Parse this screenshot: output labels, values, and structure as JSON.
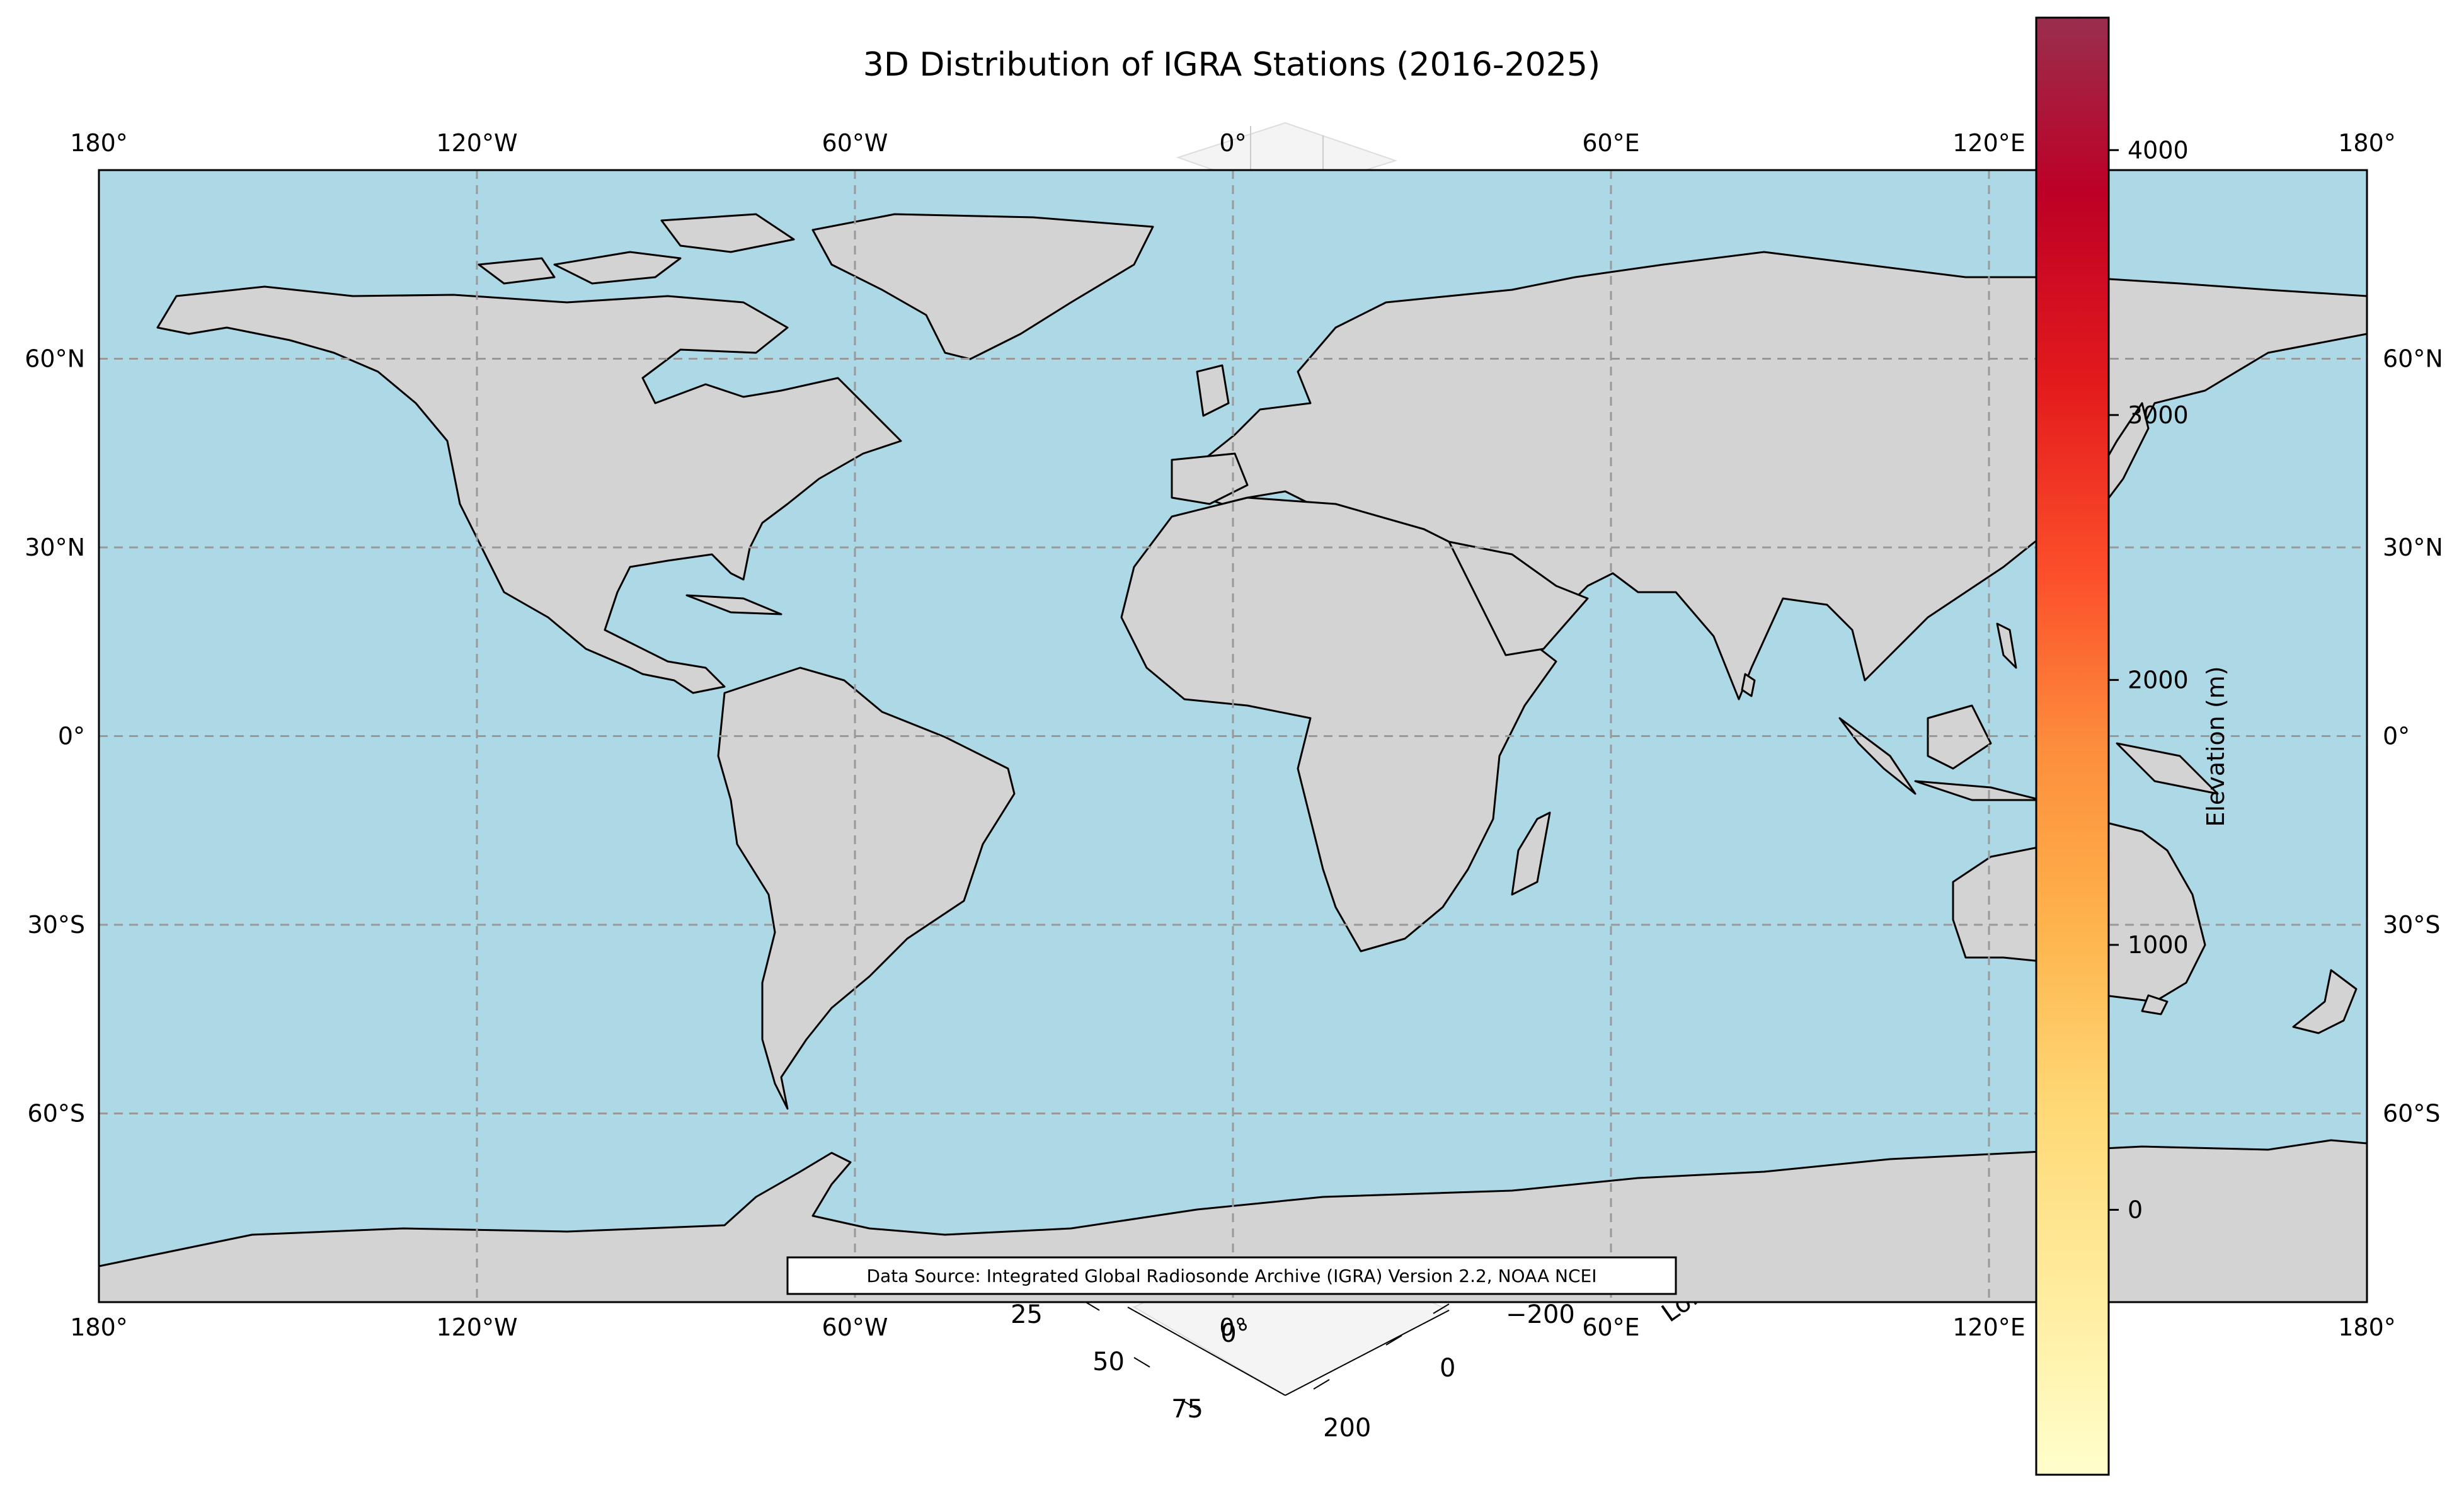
{
  "title": "3D Distribution of IGRA Stations (2016-2025)",
  "map": {
    "projection": "plate-carree",
    "extent": {
      "lon": [
        -180,
        180
      ],
      "lat": [
        -90,
        90
      ]
    },
    "lon_ticks": [
      {
        "value": -180,
        "label": "180°"
      },
      {
        "value": -120,
        "label": "120°W"
      },
      {
        "value": -60,
        "label": "60°W"
      },
      {
        "value": 0,
        "label": "0°"
      },
      {
        "value": 60,
        "label": "60°E"
      },
      {
        "value": 120,
        "label": "120°E"
      },
      {
        "value": 180,
        "label": "180°"
      }
    ],
    "lat_ticks": [
      {
        "value": 60,
        "label": "60°N"
      },
      {
        "value": 30,
        "label": "30°N"
      },
      {
        "value": 0,
        "label": "0°"
      },
      {
        "value": -30,
        "label": "30°S"
      },
      {
        "value": -60,
        "label": "60°S"
      }
    ],
    "gridlines": true,
    "colors": {
      "ocean": "#add8e6",
      "land": "#d3d3d3",
      "coastline": "#000000",
      "gridline": "#999999"
    }
  },
  "colorbar": {
    "label": "Elevation (m)",
    "ticks": [
      {
        "value": 0,
        "label": "0"
      },
      {
        "value": 1000,
        "label": "1000"
      },
      {
        "value": 2000,
        "label": "2000"
      },
      {
        "value": 3000,
        "label": "3000"
      },
      {
        "value": 4000,
        "label": "4000"
      }
    ],
    "range": [
      -1000,
      4500
    ],
    "colormap": [
      "#ffffcc",
      "#ffeda0",
      "#fed976",
      "#feb24c",
      "#fd8d3c",
      "#fc4e2a",
      "#e31a1c",
      "#bd0026",
      "#9a2e4e"
    ]
  },
  "background_3d_axes": {
    "depth_ticks": [
      "25",
      "50",
      "75"
    ],
    "zero_tick": "0°",
    "lon_ticks": [
      "−200",
      "0",
      "200"
    ],
    "partial_label": "Lon"
  },
  "source_note": "Data Source: Integrated Global Radiosonde Archive (IGRA) Version 2.2, NOAA NCEI"
}
